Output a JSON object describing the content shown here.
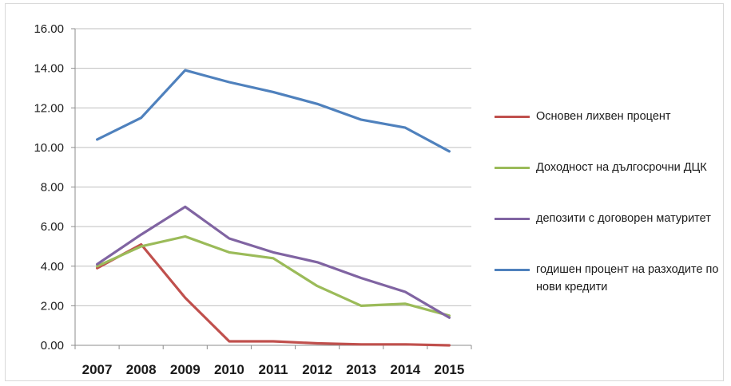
{
  "chart_data": {
    "type": "line",
    "title": "",
    "xlabel": "",
    "ylabel": "",
    "categories": [
      "2007",
      "2008",
      "2009",
      "2010",
      "2011",
      "2012",
      "2013",
      "2014",
      "2015"
    ],
    "ylim": [
      0,
      16
    ],
    "yticks": [
      "0.00",
      "2.00",
      "4.00",
      "6.00",
      "8.00",
      "10.00",
      "12.00",
      "14.00",
      "16.00"
    ],
    "grid": true,
    "legend_position": "right",
    "series": [
      {
        "name": "Основен лихвен процент",
        "color": "#c0504d",
        "values": [
          3.9,
          5.1,
          2.4,
          0.2,
          0.2,
          0.1,
          0.05,
          0.05,
          0.0
        ]
      },
      {
        "name": "Доходност на дългосрочни ДЦК",
        "color": "#9bbb59",
        "values": [
          4.0,
          5.0,
          5.5,
          4.7,
          4.4,
          3.0,
          2.0,
          2.1,
          1.5
        ]
      },
      {
        "name": "депозити с договорен матуритет",
        "color": "#8064a2",
        "values": [
          4.1,
          5.6,
          7.0,
          5.4,
          4.7,
          4.2,
          3.4,
          2.7,
          1.4
        ]
      },
      {
        "name": "годишен процент на разходите по нови кредити",
        "color": "#4f81bd",
        "values": [
          10.4,
          11.5,
          13.9,
          13.3,
          12.8,
          12.2,
          11.4,
          11.0,
          9.8
        ]
      }
    ]
  }
}
